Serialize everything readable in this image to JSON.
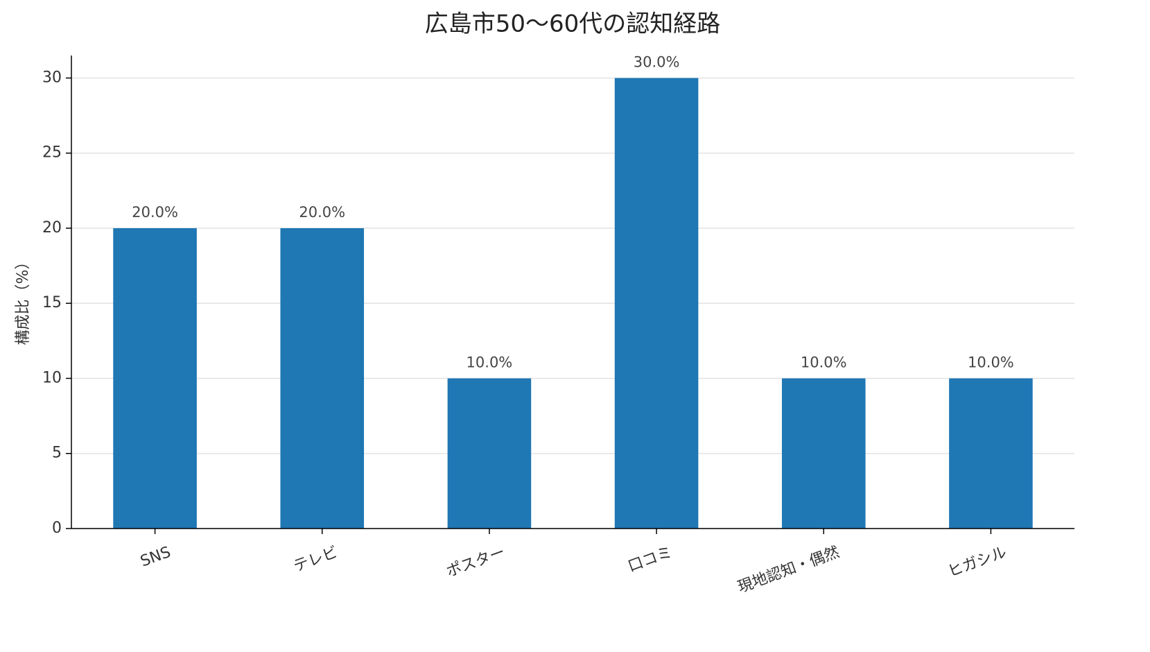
{
  "chart_data": {
    "type": "bar",
    "title": "広島市50〜60代の認知経路",
    "y_label": "構成比（%）",
    "categories": [
      "SNS",
      "テレビ",
      "ポスター",
      "口コミ",
      "現地認知・偶然",
      "ヒガシル"
    ],
    "values": [
      20,
      20,
      10,
      30,
      10,
      10
    ],
    "value_labels": [
      "20.0%",
      "20.0%",
      "10.0%",
      "30.0%",
      "10.0%",
      "10.0%"
    ],
    "color": "#1f77b4",
    "ylim": [
      0,
      31.5
    ],
    "yticks": [
      0,
      5,
      10,
      15,
      20,
      25,
      30
    ],
    "grid": true
  }
}
